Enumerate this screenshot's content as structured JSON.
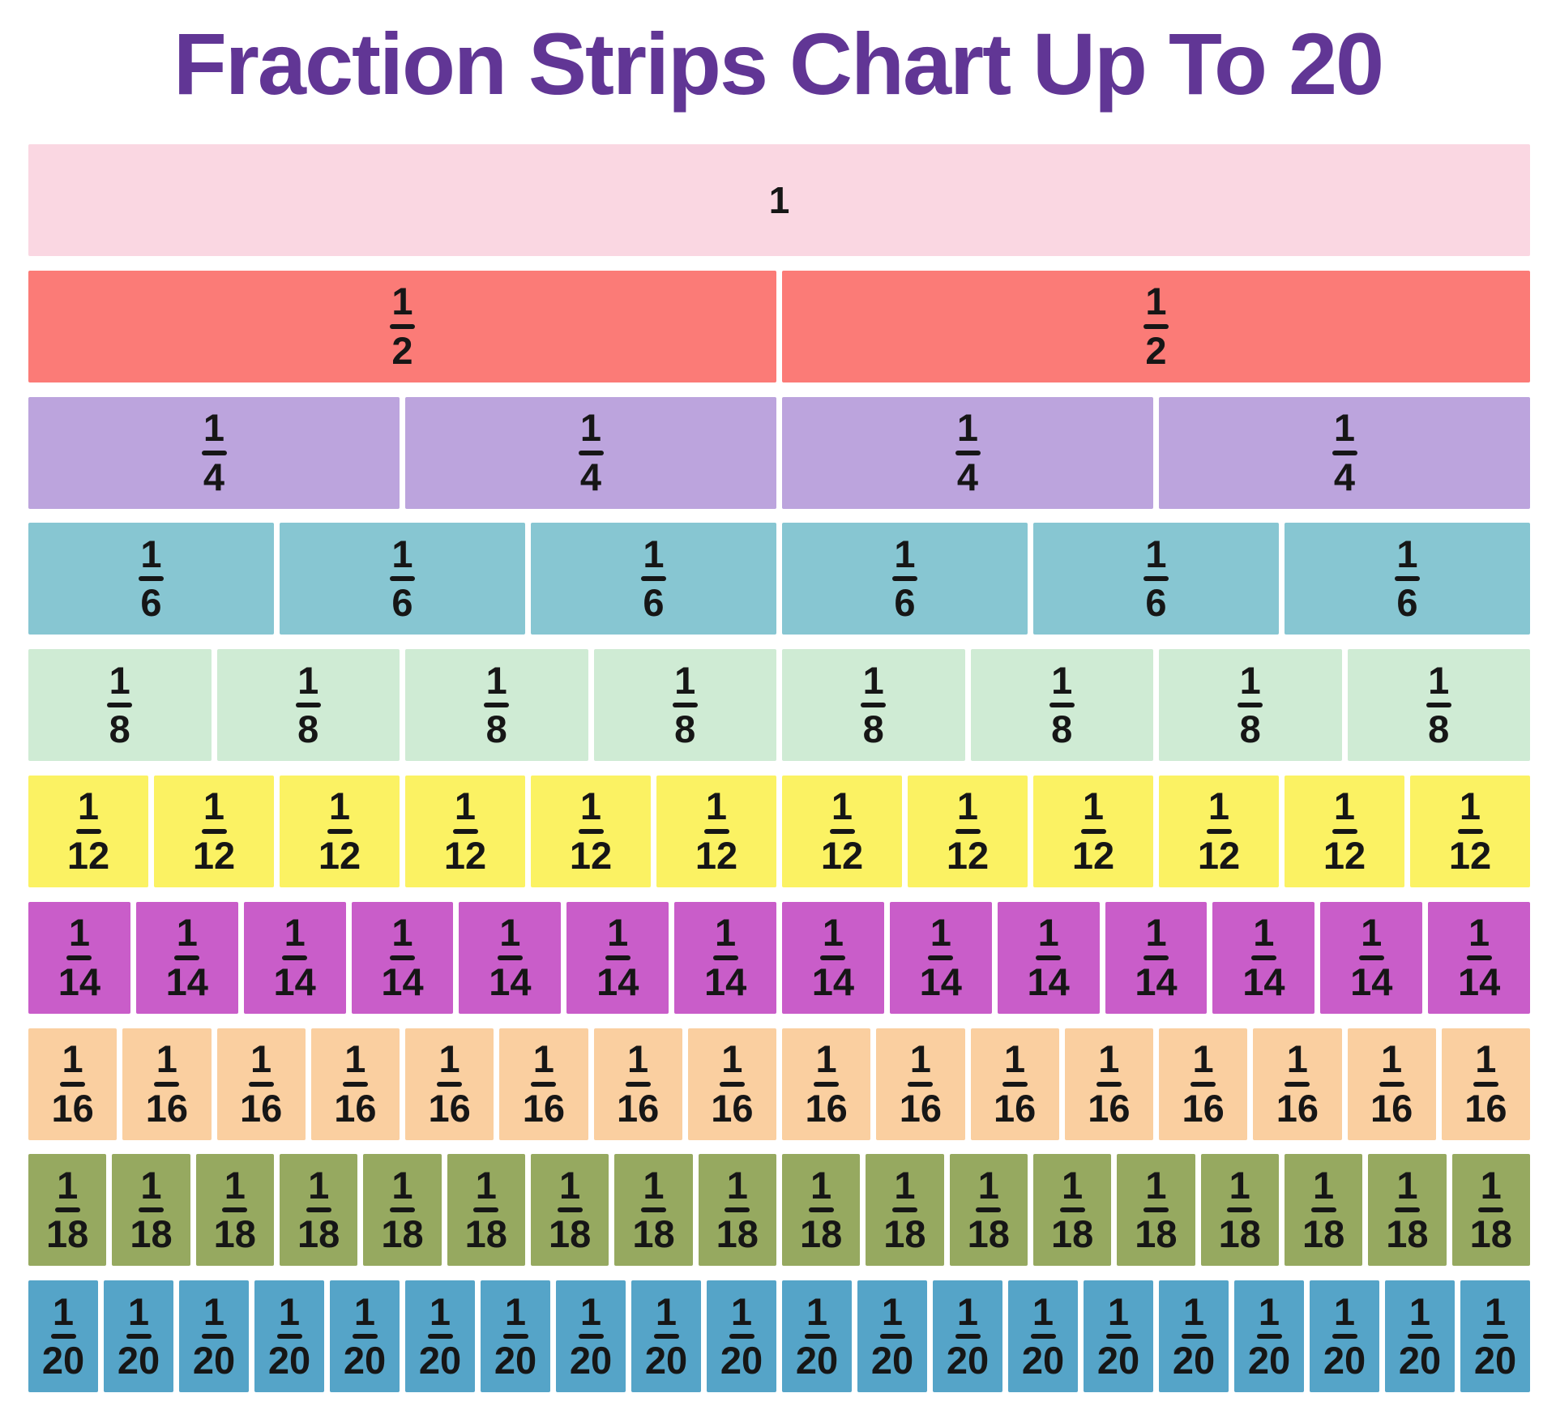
{
  "title": "Fraction Strips Chart Up To 20",
  "colors": {
    "title": "#613695",
    "text": "#161616",
    "background": "#ffffff",
    "segment_gap": "#ffffff"
  },
  "chart_data": {
    "type": "bar",
    "title": "Fraction Strips Chart Up To 20",
    "description": "Fraction strip rows, each row dividing one whole into equal parts; every segment is labeled with its unit fraction",
    "rows": [
      {
        "label": "1",
        "numerator": "1",
        "denominator": "1",
        "segments": 1,
        "segment_value": 1.0,
        "color": "#FAD7E2"
      },
      {
        "label": "1/2",
        "numerator": "1",
        "denominator": "2",
        "segments": 2,
        "segment_value": 0.5,
        "color": "#FB7B77"
      },
      {
        "label": "1/4",
        "numerator": "1",
        "denominator": "4",
        "segments": 4,
        "segment_value": 0.25,
        "color": "#BCA4DD"
      },
      {
        "label": "1/6",
        "numerator": "1",
        "denominator": "6",
        "segments": 6,
        "segment_value": 0.1667,
        "color": "#87C6D2"
      },
      {
        "label": "1/8",
        "numerator": "1",
        "denominator": "8",
        "segments": 8,
        "segment_value": 0.125,
        "color": "#CFEBD4"
      },
      {
        "label": "1/12",
        "numerator": "1",
        "denominator": "12",
        "segments": 12,
        "segment_value": 0.0833,
        "color": "#FBF263"
      },
      {
        "label": "1/14",
        "numerator": "1",
        "denominator": "14",
        "segments": 14,
        "segment_value": 0.0714,
        "color": "#C95DC9"
      },
      {
        "label": "1/16",
        "numerator": "1",
        "denominator": "16",
        "segments": 16,
        "segment_value": 0.0625,
        "color": "#FACFA0"
      },
      {
        "label": "1/18",
        "numerator": "1",
        "denominator": "18",
        "segments": 18,
        "segment_value": 0.0556,
        "color": "#96A960"
      },
      {
        "label": "1/20",
        "numerator": "1",
        "denominator": "20",
        "segments": 20,
        "segment_value": 0.05,
        "color": "#55A4C8"
      }
    ]
  }
}
